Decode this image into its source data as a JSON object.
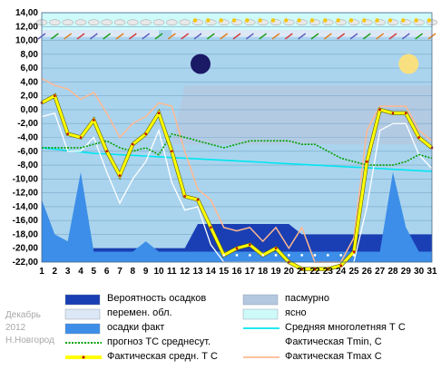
{
  "caption": {
    "month": "Декабрь",
    "year": "2012",
    "city": "Н.Новгород"
  },
  "colors": {
    "plot_bg": "#aad4ee",
    "overcast": "#b4c8e0",
    "partly_cloudy": "#dde8f6",
    "clear": "#cefafa",
    "precip_prob": "#1a3fb4",
    "precip_fact": "#3c8ee8",
    "climate_mean": "#00e6f0",
    "forecast_mean": "#00a000",
    "actual_tmin": "#ffffff",
    "actual_tmax": "#ffb890",
    "actual_mean": "#ffff00",
    "moon": "#1a1a66",
    "moon_full": "#f8e080"
  },
  "icons": {
    "weather_row": "cloud-sun-icons",
    "wind_row": "wind-arrow-icons",
    "moon_new": "new-moon-icon",
    "moon_full": "full-moon-icon"
  },
  "legend": [
    {
      "key": "precip_prob",
      "label": "Вероятность осадков",
      "kind": "box"
    },
    {
      "key": "overcast",
      "label": "пасмурно",
      "kind": "box"
    },
    {
      "key": "partly_cloudy",
      "label": "перемен. обл.",
      "kind": "box"
    },
    {
      "key": "clear",
      "label": "ясно",
      "kind": "box"
    },
    {
      "key": "precip_fact",
      "label": "осадки факт",
      "kind": "box"
    },
    {
      "key": "climate_mean",
      "label": "Средняя многолетняя Т С",
      "kind": "line"
    },
    {
      "key": "forecast_mean",
      "label": "прогноз ТС среднесут.",
      "kind": "dots"
    },
    {
      "key": "actual_tmin",
      "label": "Фактическая Tmin, С",
      "kind": "line"
    },
    {
      "key": "actual_mean",
      "label": "Фактическая средн. Т С",
      "kind": "thick"
    },
    {
      "key": "actual_tmax",
      "label": "Фактическая Tmax С",
      "kind": "line"
    }
  ],
  "chart_data": {
    "type": "line",
    "x": [
      1,
      2,
      3,
      4,
      5,
      6,
      7,
      8,
      9,
      10,
      11,
      12,
      13,
      14,
      15,
      16,
      17,
      18,
      19,
      20,
      21,
      22,
      23,
      24,
      25,
      26,
      27,
      28,
      29,
      30,
      31
    ],
    "xlim": [
      1,
      31
    ],
    "ylim": [
      -22,
      14
    ],
    "yticks": [
      "14,00",
      "12,00",
      "10,00",
      "8,00",
      "6,00",
      "4,00",
      "2,00",
      "0,00",
      "-2,00",
      "-4,00",
      "-6,00",
      "-8,00",
      "-10,00",
      "-12,00",
      "-14,00",
      "-16,00",
      "-18,00",
      "-20,00",
      "-22,00"
    ],
    "ytick_values": [
      14,
      12,
      10,
      8,
      6,
      4,
      2,
      0,
      -2,
      -4,
      -6,
      -8,
      -10,
      -12,
      -14,
      -16,
      -18,
      -20,
      -22
    ],
    "grid": true,
    "series": [
      {
        "key": "actual_tmax",
        "name": "Фактическая Tmax С",
        "values": [
          4.5,
          3.5,
          3,
          1.5,
          2.5,
          -0.5,
          -4,
          -2,
          -1,
          1,
          0.5,
          -6,
          -11.5,
          -13,
          -17,
          -17.5,
          -17,
          -19,
          -17,
          -20,
          -17,
          -22,
          -22,
          -22,
          -18.5,
          -3,
          0.5,
          0.5,
          0.5,
          -3,
          -4.5
        ]
      },
      {
        "key": "actual_mean",
        "name": "Фактическая средн. Т С",
        "values": [
          1,
          2,
          -3.5,
          -4,
          -1.5,
          -6,
          -9.5,
          -5,
          -3.5,
          -0.5,
          -6,
          -12.5,
          -13,
          -17,
          -21,
          -20,
          -19.5,
          -21,
          -20,
          -22,
          -23,
          -23,
          -23,
          -22.5,
          -20.5,
          -7.5,
          0,
          -0.5,
          -0.5,
          -4,
          -5.5
        ]
      },
      {
        "key": "actual_tmin",
        "name": "Фактическая Tmin, С",
        "values": [
          -1,
          -0.5,
          -6,
          -6,
          -4,
          -9,
          -13.5,
          -10,
          -7.5,
          -3,
          -10.5,
          -14.5,
          -14,
          -19.5,
          -22,
          -22,
          -22,
          -22,
          -22,
          -22,
          -23,
          -23,
          -23,
          -23,
          -22,
          -14,
          -3,
          -2,
          -2,
          -6.5,
          -8.5
        ]
      },
      {
        "key": "forecast_mean",
        "name": "прогноз ТС среднесут.",
        "values": [
          -5.5,
          -5.5,
          -5.5,
          -5.5,
          -5,
          -4.5,
          -5.5,
          -6,
          -5.5,
          -6.5,
          -3.5,
          -4,
          -4.5,
          -5,
          -5.5,
          -5,
          -4.5,
          -4.5,
          -4.5,
          -4.5,
          -5,
          -5,
          -6,
          -7,
          -7.5,
          -8,
          -8,
          -8,
          -7.5,
          -6.5,
          -7
        ]
      },
      {
        "key": "climate_mean",
        "name": "Средняя многолетняя Т С",
        "values": [
          -5.5,
          -5.7,
          -5.9,
          -6.1,
          -6.3,
          -6.4,
          -6.5,
          -6.6,
          -6.7,
          -6.8,
          -6.9,
          -7,
          -7.1,
          -7.2,
          -7.3,
          -7.4,
          -7.5,
          -7.6,
          -7.7,
          -7.8,
          -7.9,
          -8,
          -8.1,
          -8.2,
          -8.3,
          -8.4,
          -8.5,
          -8.6,
          -8.7,
          -8.8,
          -8.9
        ]
      }
    ],
    "precip_fact_y": [
      -13,
      -18,
      -19,
      -9,
      -20.5,
      -20.5,
      -20.5,
      -20.5,
      -19,
      -20.5,
      -20.5,
      -20.5,
      -20.5,
      -20.5,
      -20.5,
      -20.5,
      -20.5,
      -20.5,
      -20.5,
      -20.5,
      -20.5,
      -20.5,
      -20.5,
      -20.5,
      -20.5,
      -20.5,
      -20.5,
      -9,
      -17,
      -20.5,
      -20.5
    ],
    "precip_prob_y": [
      -22,
      -22,
      -22,
      -22,
      -20,
      -20,
      -20,
      -20,
      -20,
      -20,
      -20,
      -20,
      -16.5,
      -16.5,
      -16.5,
      -16.5,
      -16.5,
      -16.5,
      -16.5,
      -16.5,
      -18,
      -18,
      -18,
      -18,
      -18,
      -18,
      -18,
      -18,
      -18,
      -18,
      -18
    ],
    "overcast_band": {
      "days": [
        11,
        31
      ],
      "values": [
        4,
        4
      ]
    },
    "clear_band": {
      "days": [
        1,
        31
      ],
      "values": [
        11.5,
        14
      ]
    },
    "partly_band": {
      "days": [
        1,
        10
      ],
      "values": [
        11.5,
        10.5
      ]
    },
    "moon_new_day": 13,
    "moon_full_day": 29
  }
}
